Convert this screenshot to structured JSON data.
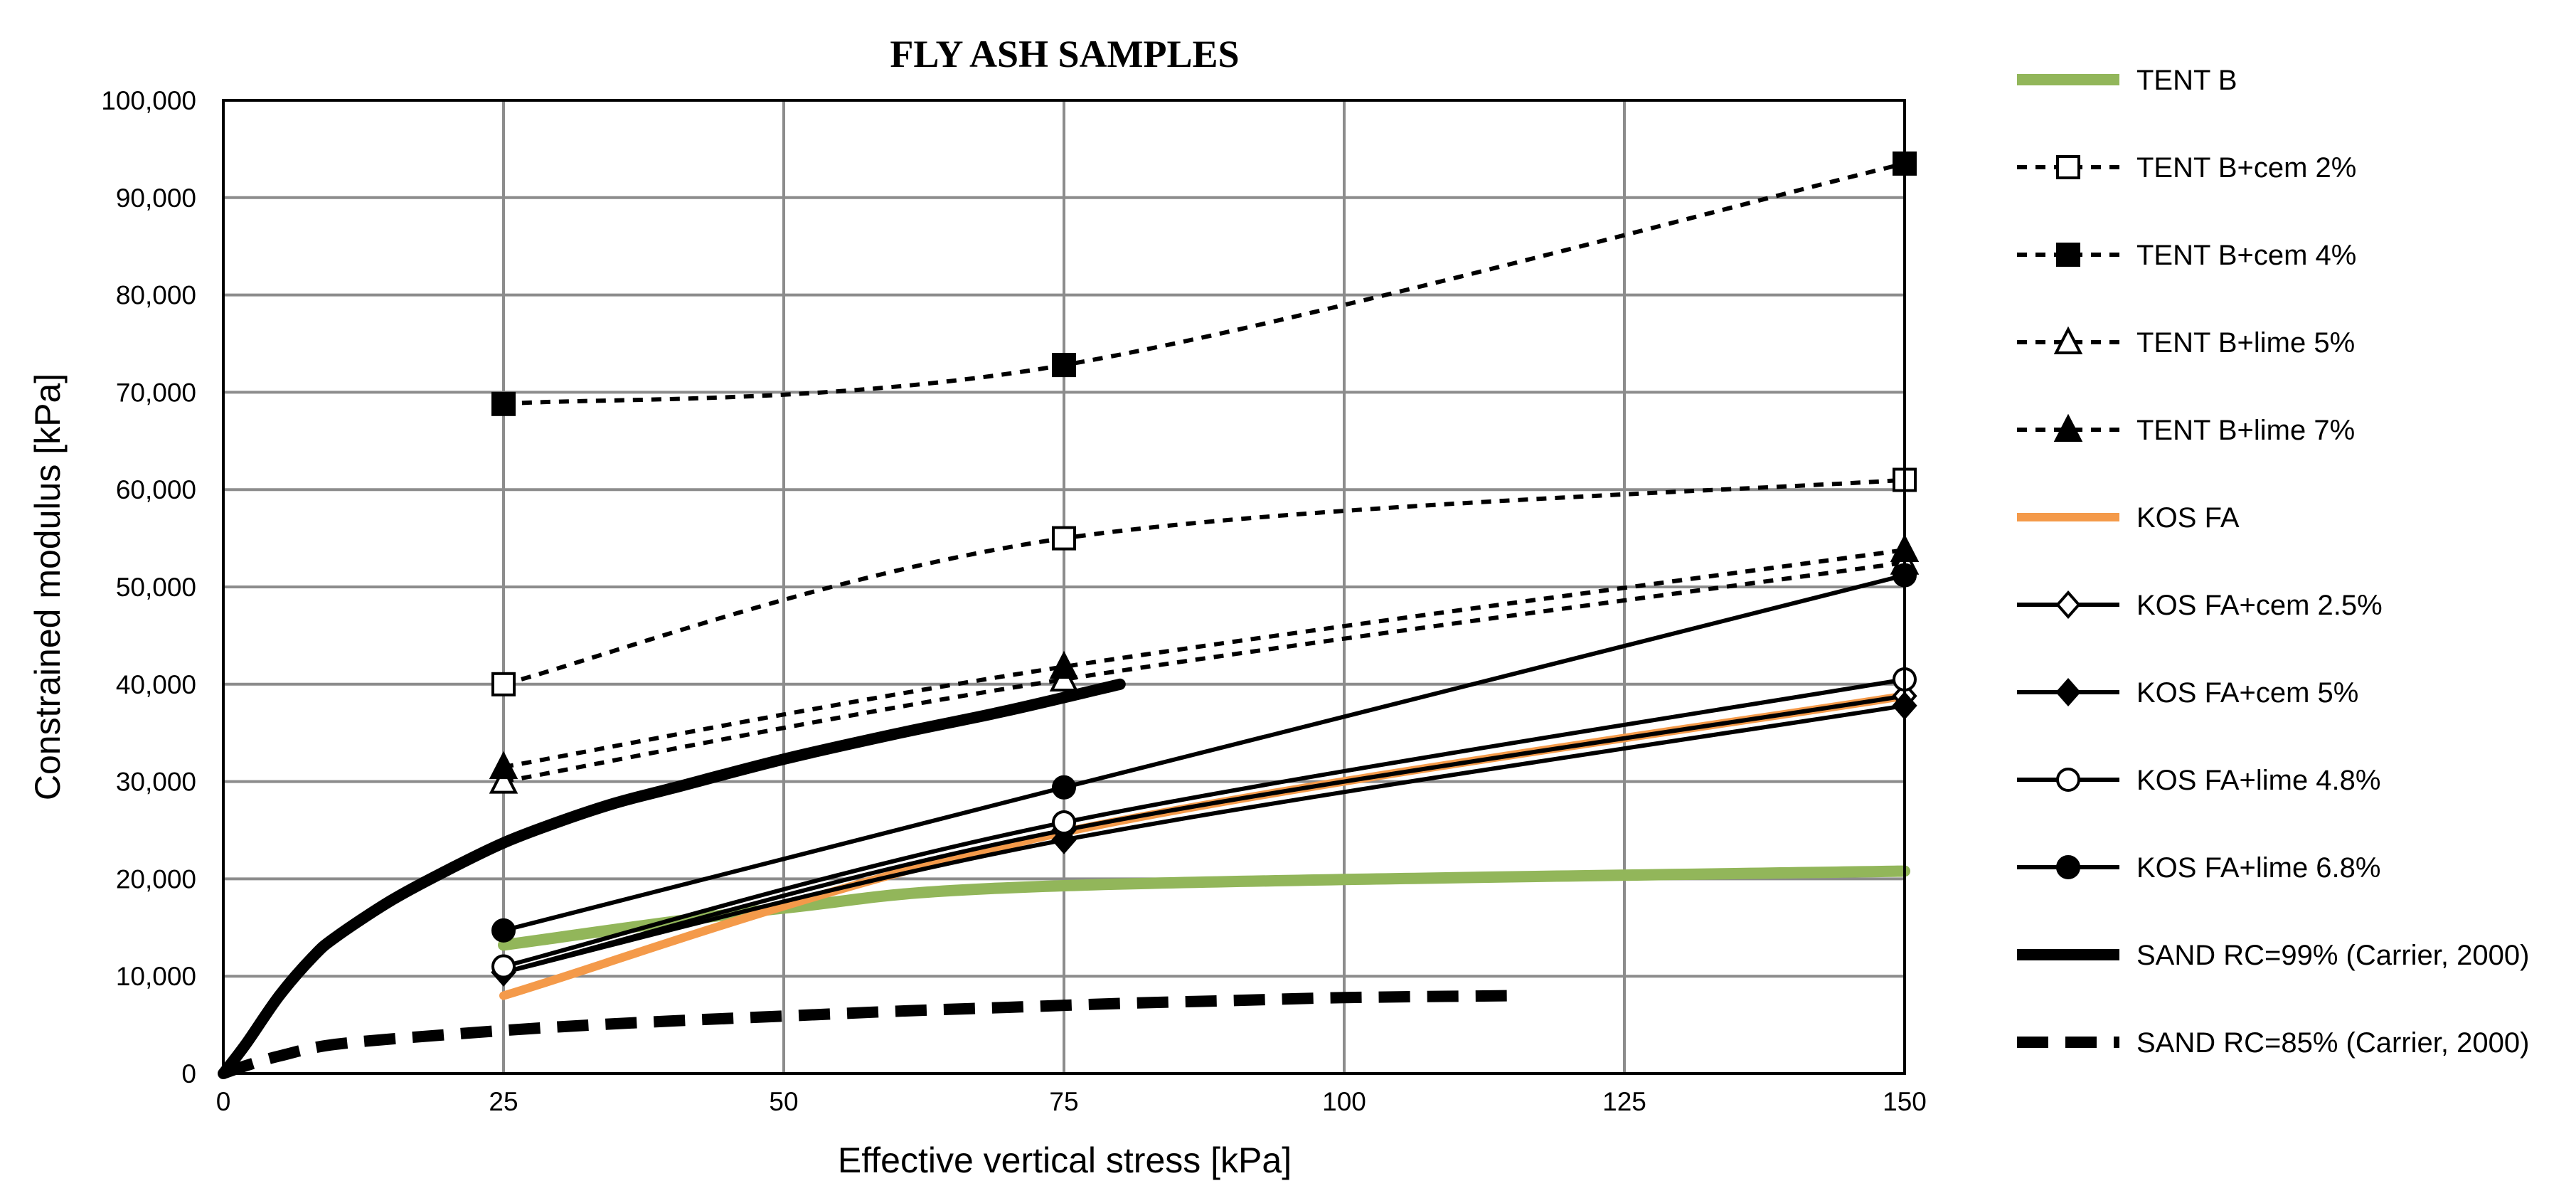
{
  "chart_data": {
    "type": "line",
    "title": "FLY ASH SAMPLES",
    "xlabel": "Effective vertical stress [kPa]",
    "ylabel": "Constrained modulus [kPa]",
    "xlim": [
      0,
      150
    ],
    "ylim": [
      0,
      100000
    ],
    "xticks": [
      0,
      25,
      50,
      75,
      100,
      125,
      150
    ],
    "xtick_labels": [
      "0",
      "25",
      "50",
      "75",
      "100",
      "125",
      "150"
    ],
    "yticks": [
      0,
      10000,
      20000,
      30000,
      40000,
      50000,
      60000,
      70000,
      80000,
      90000,
      100000
    ],
    "ytick_labels": [
      "0",
      "10,000",
      "20,000",
      "30,000",
      "40,000",
      "50,000",
      "60,000",
      "70,000",
      "80,000",
      "90,000",
      "100,000"
    ],
    "grid": true,
    "legend_position": "right",
    "series": [
      {
        "name": "TENT B",
        "color": "#92b65a",
        "width": 16,
        "dash": "none",
        "marker": "none",
        "smooth": true,
        "x": [
          25,
          50,
          75,
          150
        ],
        "y": [
          13200,
          17000,
          19300,
          20800
        ]
      },
      {
        "name": "TENT B+cem 2%",
        "color": "#000000",
        "width": 6,
        "dash": "short",
        "marker": "square-open",
        "smooth": true,
        "x": [
          25,
          75,
          150
        ],
        "y": [
          40000,
          55000,
          61000
        ]
      },
      {
        "name": "TENT B+cem 4%",
        "color": "#000000",
        "width": 6,
        "dash": "short",
        "marker": "square-filled",
        "smooth": true,
        "x": [
          25,
          75,
          150
        ],
        "y": [
          68800,
          72800,
          93500
        ]
      },
      {
        "name": "TENT B+lime 5%",
        "color": "#000000",
        "width": 6,
        "dash": "short",
        "marker": "triangle-open",
        "smooth": true,
        "x": [
          25,
          75,
          150
        ],
        "y": [
          30000,
          40500,
          52500
        ]
      },
      {
        "name": "TENT B+lime 7%",
        "color": "#000000",
        "width": 6,
        "dash": "short",
        "marker": "triangle-filled",
        "smooth": true,
        "x": [
          25,
          75,
          150
        ],
        "y": [
          31500,
          41800,
          53800
        ]
      },
      {
        "name": "KOS FA",
        "color": "#f49a4a",
        "width": 12,
        "dash": "none",
        "marker": "none",
        "smooth": true,
        "x": [
          25,
          75,
          150
        ],
        "y": [
          8000,
          24800,
          38800
        ]
      },
      {
        "name": "KOS FA+cem 2.5%",
        "color": "#000000",
        "width": 6,
        "dash": "none",
        "marker": "diamond-open",
        "smooth": true,
        "x": [
          25,
          75,
          150
        ],
        "y": [
          10400,
          25000,
          38800
        ]
      },
      {
        "name": "KOS FA+cem 5%",
        "color": "#000000",
        "width": 6,
        "dash": "none",
        "marker": "diamond-filled",
        "smooth": true,
        "x": [
          25,
          75,
          150
        ],
        "y": [
          10400,
          24000,
          37800
        ]
      },
      {
        "name": "KOS FA+lime 4.8%",
        "color": "#000000",
        "width": 6,
        "dash": "none",
        "marker": "circle-open",
        "smooth": true,
        "x": [
          25,
          75,
          150
        ],
        "y": [
          11000,
          25800,
          40500
        ]
      },
      {
        "name": "KOS FA+lime 6.8%",
        "color": "#000000",
        "width": 6,
        "dash": "none",
        "marker": "circle-filled",
        "smooth": false,
        "x": [
          25,
          75,
          150
        ],
        "y": [
          14700,
          29400,
          51200
        ]
      },
      {
        "name": "SAND RC=99% (Carrier, 2000)",
        "color": "#000000",
        "width": 16,
        "dash": "none",
        "marker": "none",
        "smooth": true,
        "x": [
          0,
          2,
          5,
          8,
          10,
          15,
          20,
          25,
          30,
          35,
          40,
          50,
          60,
          70,
          80
        ],
        "y": [
          0,
          3000,
          8000,
          12000,
          14000,
          17800,
          20900,
          23700,
          25900,
          27800,
          29300,
          32300,
          34900,
          37300,
          40000
        ]
      },
      {
        "name": "SAND RC=85% (Carrier, 2000)",
        "color": "#000000",
        "width": 16,
        "dash": "long",
        "marker": "none",
        "smooth": true,
        "x": [
          0,
          2,
          5,
          10,
          20,
          30,
          40,
          50,
          60,
          70,
          80,
          90,
          100,
          115
        ],
        "y": [
          0,
          800,
          1800,
          3000,
          4000,
          4800,
          5400,
          5900,
          6400,
          6800,
          7200,
          7500,
          7800,
          8000
        ]
      }
    ]
  }
}
